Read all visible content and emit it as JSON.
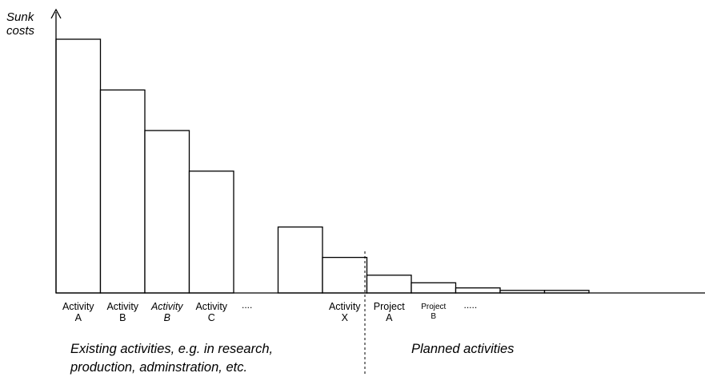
{
  "chart_data": {
    "type": "bar",
    "ylabel_line1": "Sunk",
    "ylabel_line2": "costs",
    "ylim": [
      0,
      100
    ],
    "grid": false,
    "values": [
      100,
      80,
      64,
      48,
      0,
      26,
      14,
      7,
      4,
      2,
      1,
      1
    ],
    "labels": [
      {
        "l1": "Activity",
        "l2": "A",
        "style": "normal"
      },
      {
        "l1": "Activity",
        "l2": "B",
        "style": "normal"
      },
      {
        "l1": "Activity",
        "l2": "B",
        "style": "italic"
      },
      {
        "l1": "Activity",
        "l2": "C",
        "style": "normal"
      },
      {
        "l1": "....",
        "l2": "",
        "style": "dots"
      },
      {
        "l1": "",
        "l2": "",
        "style": "none"
      },
      {
        "l1": "Activity",
        "l2": "X",
        "style": "normal"
      },
      {
        "l1": "Project",
        "l2": "A",
        "style": "normal"
      },
      {
        "l1": "Project",
        "l2": "B",
        "style": "small"
      },
      {
        "l1": ".....",
        "l2": "",
        "style": "dots"
      },
      {
        "l1": "",
        "l2": "",
        "style": "none"
      },
      {
        "l1": "",
        "l2": "",
        "style": "none"
      }
    ],
    "regions": {
      "existing_line1": "Existing activities, e.g. in research,",
      "existing_line2": "production, adminstration, etc.",
      "planned": "Planned activities"
    }
  }
}
